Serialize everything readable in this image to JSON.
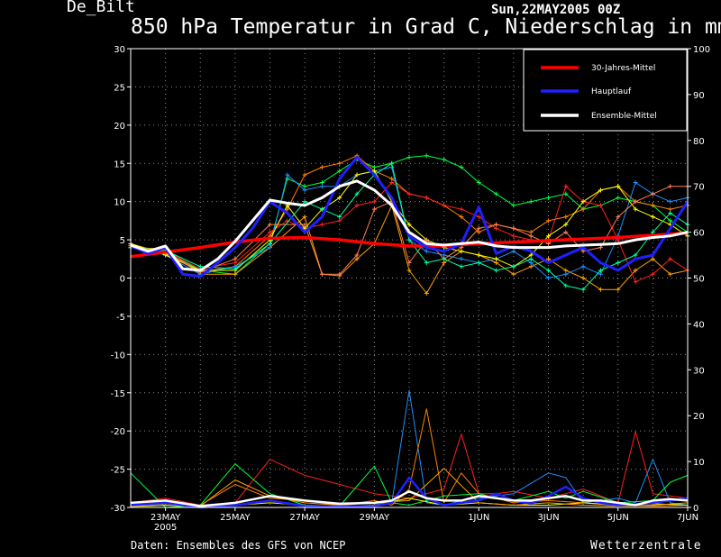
{
  "header": {
    "station": "De_Bilt",
    "run": "Sun,22MAY2005 00Z",
    "title": "850 hPa Temperatur in Grad C, Niederschlag in mm"
  },
  "footer": {
    "source": "Daten: Ensembles des GFS von NCEP",
    "brand": "Wetterzentrale"
  },
  "colors": {
    "background": "#000000",
    "grid": "#8a8a8a",
    "climatology": "#ff0000",
    "main_run": "#2020ff",
    "ensemble_mean": "#ffffff",
    "members": [
      "#00ff40",
      "#ff8000",
      "#ffa000",
      "#1e90ff",
      "#ff2020",
      "#ffff00",
      "#ff7f50",
      "#00ffa0",
      "#ff00aa",
      "#90ee90"
    ]
  },
  "chart_data": {
    "type": "line",
    "title": "850 hPa Temperatur in Grad C, Niederschlag in mm",
    "x_tick_labels": [
      "23MAY",
      "25MAY",
      "27MAY",
      "29MAY",
      "1JUN",
      "3JUN",
      "5JUN",
      "7JUN"
    ],
    "x_tick_year": "2005",
    "x_tick_days": [
      1,
      3,
      5,
      7,
      10,
      12,
      14,
      16
    ],
    "x_range_days": [
      0,
      16
    ],
    "y_left": {
      "range": [
        -30,
        30
      ],
      "ticks": [
        -30,
        -25,
        -20,
        -15,
        -10,
        -5,
        0,
        5,
        10,
        15,
        20,
        25,
        30
      ]
    },
    "y_right": {
      "range": [
        0,
        100
      ],
      "ticks": [
        0,
        10,
        20,
        30,
        40,
        50,
        60,
        70,
        80,
        90,
        100
      ]
    },
    "grid": true,
    "legend_position": "top-right",
    "legend": [
      "30-Jahres-Mittel",
      "Hauptlauf",
      "Ensemble-Mittel"
    ],
    "temperature_series": [
      {
        "name": "30-Jahres-Mittel",
        "color": "#ff0000",
        "width": 3.5,
        "x": [
          0,
          1,
          2,
          3,
          4,
          5,
          6,
          7,
          8,
          9,
          10,
          11,
          12,
          13,
          14,
          15,
          16
        ],
        "y": [
          2.8,
          3.4,
          4.0,
          4.7,
          5.2,
          5.3,
          5.0,
          4.5,
          4.2,
          4.2,
          4.5,
          4.7,
          4.9,
          5.1,
          5.3,
          5.6,
          5.9
        ]
      },
      {
        "name": "Hauptlauf",
        "color": "#2020ff",
        "width": 3,
        "x": [
          0,
          0.5,
          1,
          1.5,
          2,
          2.5,
          3,
          3.5,
          4,
          4.5,
          5,
          5.5,
          6,
          6.5,
          7,
          7.5,
          8,
          8.5,
          9,
          9.5,
          10,
          10.5,
          11,
          11.5,
          12,
          12.5,
          13,
          13.5,
          14,
          14.5,
          15,
          15.5,
          16
        ],
        "y": [
          4.2,
          3.2,
          4.0,
          0.5,
          0.2,
          2.0,
          4.0,
          6.5,
          10.0,
          8.5,
          6.0,
          8.0,
          13.0,
          15.8,
          13.5,
          10.5,
          5.5,
          4.0,
          3.5,
          4.5,
          9.3,
          3.2,
          4.2,
          3.5,
          2.0,
          3.0,
          4.0,
          2.0,
          1.0,
          2.5,
          3.0,
          6.5,
          10.0
        ]
      },
      {
        "name": "Ensemble-Mittel",
        "color": "#ffffff",
        "width": 3,
        "x": [
          0,
          0.5,
          1,
          1.5,
          2,
          2.5,
          3,
          3.5,
          4,
          4.5,
          5,
          5.5,
          6,
          6.5,
          7,
          7.5,
          8,
          8.5,
          9,
          9.5,
          10,
          10.5,
          11,
          11.5,
          12,
          12.5,
          13,
          13.5,
          14,
          14.5,
          15,
          15.5,
          16
        ],
        "y": [
          4.3,
          3.5,
          4.2,
          1.2,
          1.0,
          2.5,
          4.8,
          7.5,
          10.2,
          9.8,
          9.5,
          10.5,
          12.0,
          12.7,
          11.5,
          9.5,
          6.0,
          4.5,
          4.3,
          4.5,
          4.7,
          4.2,
          4.0,
          4.0,
          4.0,
          4.2,
          4.3,
          4.4,
          4.5,
          5.0,
          5.3,
          5.5,
          6.0
        ]
      },
      {
        "name": "member-green",
        "color": "#00ff40",
        "width": 1,
        "x": [
          0,
          1,
          2,
          3,
          4,
          4.5,
          5,
          5.5,
          6,
          6.5,
          7,
          7.5,
          8,
          8.5,
          9,
          9.5,
          10,
          10.5,
          11,
          11.5,
          12,
          12.5,
          13,
          13.5,
          14,
          14.5,
          15,
          15.5,
          16
        ],
        "y": [
          4.0,
          3.5,
          1.0,
          0.5,
          4.5,
          13.0,
          12.0,
          12.5,
          14.0,
          15.5,
          14.5,
          15.0,
          15.8,
          16.0,
          15.5,
          14.5,
          12.5,
          11.0,
          9.5,
          10.0,
          10.5,
          11.0,
          9.0,
          9.5,
          10.5,
          10.0,
          9.5,
          7.5,
          6.0
        ]
      },
      {
        "name": "member-orange",
        "color": "#ff8000",
        "width": 1,
        "x": [
          0,
          1,
          2,
          3,
          4,
          4.5,
          5,
          5.5,
          6,
          6.5,
          7,
          7.5,
          8,
          8.5,
          9,
          9.5,
          10,
          10.5,
          11,
          11.5,
          12,
          12.5,
          13,
          13.5,
          14,
          14.5,
          15,
          15.5,
          16
        ],
        "y": [
          4.5,
          3.2,
          0.8,
          1.5,
          5.5,
          9.0,
          13.5,
          14.5,
          15.0,
          16.0,
          14.0,
          13.0,
          11.0,
          10.5,
          9.5,
          8.0,
          6.0,
          7.0,
          6.5,
          6.0,
          7.5,
          8.0,
          9.0,
          11.5,
          12.0,
          10.0,
          9.5,
          9.0,
          9.5
        ]
      },
      {
        "name": "member-amber",
        "color": "#ffa000",
        "width": 1,
        "x": [
          0,
          1,
          2,
          3,
          4,
          5,
          5.5,
          6,
          6.5,
          7,
          7.5,
          8,
          8.5,
          9,
          9.5,
          10,
          10.5,
          11,
          11.5,
          12,
          12.5,
          13,
          13.5,
          14,
          14.5,
          15,
          15.5,
          16
        ],
        "y": [
          4.0,
          3.8,
          0.5,
          0.5,
          4.0,
          8.0,
          0.5,
          0.3,
          2.5,
          4.5,
          9.5,
          1.0,
          -2.0,
          2.0,
          3.5,
          3.0,
          2.0,
          0.5,
          1.5,
          2.5,
          1.0,
          0.0,
          -1.5,
          -1.5,
          1.0,
          2.5,
          0.5,
          1.0
        ]
      },
      {
        "name": "member-blue",
        "color": "#1e90ff",
        "width": 1,
        "x": [
          0,
          1,
          2,
          3,
          4,
          4.5,
          5,
          5.5,
          6,
          6.5,
          7,
          7.5,
          8,
          8.5,
          9,
          9.5,
          10,
          10.5,
          11,
          11.5,
          12,
          12.5,
          13,
          13.5,
          14,
          14.5,
          15,
          15.5,
          16
        ],
        "y": [
          4.3,
          3.0,
          0.5,
          1.5,
          4.0,
          13.5,
          11.5,
          12.0,
          12.0,
          13.5,
          14.0,
          14.5,
          5.0,
          3.5,
          3.0,
          2.5,
          2.0,
          2.5,
          3.5,
          2.0,
          0.0,
          0.5,
          1.5,
          0.5,
          5.5,
          12.5,
          11.0,
          10.0,
          10.5
        ]
      },
      {
        "name": "member-red",
        "color": "#ff2020",
        "width": 1,
        "x": [
          0,
          1,
          2,
          3,
          4,
          4.5,
          5,
          5.5,
          6,
          6.5,
          7,
          7.5,
          8,
          8.5,
          9,
          9.5,
          10,
          10.5,
          11,
          11.5,
          12,
          12.5,
          13,
          13.5,
          14,
          14.5,
          15,
          15.5,
          16
        ],
        "y": [
          4.0,
          3.5,
          1.2,
          2.0,
          6.0,
          7.5,
          6.5,
          7.0,
          7.5,
          9.5,
          10.0,
          12.5,
          11.0,
          10.5,
          9.5,
          9.0,
          8.0,
          6.5,
          5.5,
          5.0,
          5.0,
          12.0,
          10.0,
          9.5,
          5.0,
          -0.5,
          0.5,
          2.5,
          1.0
        ]
      },
      {
        "name": "member-yellow",
        "color": "#ffff00",
        "width": 1,
        "x": [
          0,
          1,
          2,
          3,
          4,
          4.5,
          5,
          5.5,
          6,
          6.5,
          7,
          7.5,
          8,
          8.5,
          9,
          9.5,
          10,
          10.5,
          11,
          11.5,
          12,
          12.5,
          13,
          13.5,
          14,
          14.5,
          15,
          15.5,
          16
        ],
        "y": [
          4.5,
          3.0,
          1.0,
          1.0,
          5.0,
          9.5,
          6.5,
          9.0,
          10.5,
          13.5,
          14.0,
          10.0,
          7.0,
          5.0,
          4.0,
          3.5,
          3.0,
          2.5,
          1.5,
          3.0,
          5.5,
          7.0,
          10.0,
          11.5,
          12.0,
          9.0,
          8.0,
          7.0,
          5.5
        ]
      },
      {
        "name": "member-coral",
        "color": "#ff7f50",
        "width": 1,
        "x": [
          0,
          1,
          2,
          3,
          4,
          5,
          5.5,
          6,
          6.5,
          7,
          7.5,
          8,
          8.5,
          9,
          9.5,
          10,
          10.5,
          11,
          11.5,
          12,
          12.5,
          13,
          13.5,
          14,
          14.5,
          15,
          15.5,
          16
        ],
        "y": [
          4.2,
          3.3,
          0.8,
          2.5,
          7.0,
          7.0,
          0.5,
          0.5,
          3.0,
          9.0,
          10.0,
          2.0,
          5.0,
          2.5,
          4.0,
          6.5,
          7.0,
          6.5,
          5.5,
          4.5,
          6.0,
          3.5,
          4.0,
          8.0,
          10.0,
          11.0,
          12.0,
          12.0
        ]
      },
      {
        "name": "member-teal",
        "color": "#00ffa0",
        "width": 1,
        "x": [
          0,
          1,
          2,
          3,
          4,
          5,
          5.5,
          6,
          6.5,
          7,
          7.5,
          8,
          8.5,
          9,
          9.5,
          10,
          10.5,
          11,
          11.5,
          12,
          12.5,
          13,
          13.5,
          14,
          14.5,
          15,
          15.5,
          16
        ],
        "y": [
          4.0,
          3.6,
          1.5,
          1.2,
          4.5,
          10.0,
          9.0,
          8.0,
          11.0,
          13.5,
          15.0,
          5.0,
          2.0,
          2.5,
          1.5,
          2.0,
          1.0,
          1.5,
          2.5,
          1.0,
          -1.0,
          -1.5,
          1.0,
          2.0,
          3.0,
          6.0,
          8.5,
          7.0
        ]
      }
    ],
    "precipitation_series": [
      {
        "name": "Hauptlauf",
        "color": "#2020ff",
        "width": 2.5,
        "x": [
          0,
          1,
          2,
          3,
          4,
          5,
          6,
          7,
          7.5,
          8,
          8.5,
          9,
          9.5,
          10,
          10.5,
          11,
          11.5,
          12,
          12.5,
          13,
          13.5,
          14,
          15,
          16
        ],
        "y": [
          0.5,
          1.0,
          0.0,
          0.5,
          1.5,
          0.3,
          0.2,
          0.3,
          1.0,
          6.5,
          2.0,
          0.5,
          1.0,
          1.5,
          3.0,
          1.5,
          0.8,
          2.5,
          4.5,
          2.0,
          1.0,
          0.5,
          1.0,
          2.0
        ]
      },
      {
        "name": "Ensemble-Mittel",
        "color": "#ffffff",
        "width": 2.5,
        "x": [
          0,
          1,
          2,
          3,
          4,
          5,
          6,
          7,
          7.5,
          8,
          8.5,
          9,
          9.5,
          10,
          10.5,
          11,
          11.5,
          12,
          12.5,
          13,
          13.5,
          14,
          14.5,
          15,
          15.5,
          16
        ],
        "y": [
          1.0,
          1.5,
          0.3,
          1.0,
          2.5,
          1.5,
          0.8,
          1.0,
          1.5,
          3.5,
          2.0,
          1.5,
          1.5,
          2.5,
          2.0,
          1.5,
          1.5,
          2.0,
          2.5,
          1.5,
          1.5,
          1.0,
          0.5,
          1.5,
          1.8,
          1.5
        ]
      },
      {
        "name": "member-red",
        "color": "#ff2020",
        "width": 1,
        "x": [
          0,
          1,
          2,
          3,
          4,
          5,
          6,
          7,
          8,
          9,
          9.5,
          10,
          10.5,
          11,
          12,
          13,
          14,
          14.5,
          15,
          16
        ],
        "y": [
          1.0,
          2.0,
          0.5,
          1.0,
          10.5,
          7.0,
          5.0,
          3.0,
          2.0,
          4.0,
          16.0,
          3.0,
          3.0,
          3.5,
          2.0,
          4.0,
          1.0,
          16.5,
          3.0,
          2.0
        ]
      },
      {
        "name": "member-blue",
        "color": "#1e90ff",
        "width": 1,
        "x": [
          0,
          1,
          2,
          3,
          4,
          5,
          6,
          7,
          7.5,
          8,
          8.5,
          9,
          9.5,
          10,
          11,
          12,
          12.5,
          13,
          13.5,
          14,
          14.5,
          15,
          15.5,
          16
        ],
        "y": [
          0.5,
          0.8,
          0.3,
          0.5,
          1.5,
          0.5,
          0.3,
          0.5,
          1.0,
          25.5,
          1.0,
          0.5,
          1.5,
          2.0,
          3.0,
          7.5,
          6.5,
          1.0,
          1.5,
          2.0,
          1.0,
          10.5,
          1.0,
          0.5
        ]
      },
      {
        "name": "member-orange",
        "color": "#ff8000",
        "width": 1,
        "x": [
          0,
          1,
          2,
          3,
          4,
          5,
          6,
          7,
          7.5,
          8,
          8.5,
          9,
          9.5,
          10,
          11,
          12,
          13,
          14,
          15,
          16
        ],
        "y": [
          0.5,
          1.0,
          0.5,
          5.0,
          2.0,
          1.5,
          0.5,
          1.5,
          0.5,
          4.0,
          21.5,
          1.0,
          7.5,
          3.0,
          1.0,
          1.5,
          1.0,
          0.5,
          0.3,
          0.5
        ]
      },
      {
        "name": "member-green",
        "color": "#00ff40",
        "width": 1,
        "x": [
          0,
          1,
          2,
          3,
          4,
          5,
          6,
          7,
          7.5,
          8,
          9,
          10,
          10.5,
          11,
          12,
          12.5,
          13,
          14,
          15,
          15.5,
          16
        ],
        "y": [
          7.5,
          0.0,
          0.5,
          9.5,
          3.0,
          0.5,
          0.3,
          9.0,
          1.0,
          0.5,
          2.5,
          3.0,
          2.0,
          1.5,
          3.5,
          2.0,
          3.5,
          1.0,
          1.5,
          5.5,
          7.0
        ]
      },
      {
        "name": "member-yellow",
        "color": "#ffff00",
        "width": 1,
        "x": [
          0,
          1,
          2,
          3,
          4,
          5,
          6,
          7,
          8,
          9,
          10,
          11,
          12,
          13,
          14,
          15,
          16
        ],
        "y": [
          0.2,
          0.5,
          0.2,
          0.5,
          1.0,
          0.5,
          0.2,
          0.5,
          2.0,
          0.5,
          1.0,
          0.5,
          0.5,
          1.0,
          0.5,
          0.8,
          0.5
        ]
      },
      {
        "name": "member-amber",
        "color": "#ffa000",
        "width": 1,
        "x": [
          0,
          1,
          2,
          3,
          4,
          5,
          6,
          7,
          8,
          9,
          10,
          11,
          12,
          13,
          14,
          15,
          16
        ],
        "y": [
          0.3,
          0.8,
          0.3,
          6.0,
          2.5,
          1.0,
          0.5,
          1.0,
          1.5,
          8.5,
          1.0,
          0.5,
          1.0,
          0.5,
          0.3,
          0.5,
          1.0
        ]
      }
    ]
  }
}
